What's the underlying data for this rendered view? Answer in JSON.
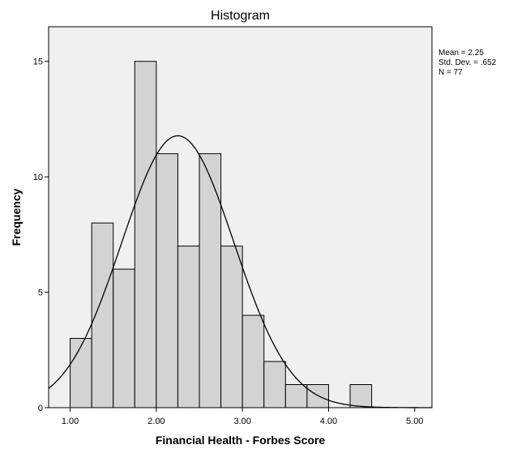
{
  "chart_data": {
    "type": "bar",
    "title": "Histogram",
    "xlabel": "Financial Health - Forbes Score",
    "ylabel": "Frequency",
    "bin_width": 0.25,
    "bins": [
      {
        "start": 1.0,
        "count": 3
      },
      {
        "start": 1.25,
        "count": 8
      },
      {
        "start": 1.5,
        "count": 6
      },
      {
        "start": 1.75,
        "count": 15
      },
      {
        "start": 2.0,
        "count": 11
      },
      {
        "start": 2.25,
        "count": 7
      },
      {
        "start": 2.5,
        "count": 11
      },
      {
        "start": 2.75,
        "count": 7
      },
      {
        "start": 3.0,
        "count": 4
      },
      {
        "start": 3.25,
        "count": 2
      },
      {
        "start": 3.5,
        "count": 1
      },
      {
        "start": 3.75,
        "count": 1
      },
      {
        "start": 4.0,
        "count": 0
      },
      {
        "start": 4.25,
        "count": 1
      }
    ],
    "xlim": [
      0.75,
      5.2
    ],
    "ylim": [
      0,
      16.5
    ],
    "x_ticks": [
      {
        "value": 1,
        "label": "1.00"
      },
      {
        "value": 2,
        "label": "2.00"
      },
      {
        "value": 3,
        "label": "3.00"
      },
      {
        "value": 4,
        "label": "4.00"
      },
      {
        "value": 5,
        "label": "5.00"
      }
    ],
    "y_ticks": [
      {
        "value": 0,
        "label": "0"
      },
      {
        "value": 5,
        "label": "5"
      },
      {
        "value": 10,
        "label": "10"
      },
      {
        "value": 15,
        "label": "15"
      }
    ],
    "normal_curve": {
      "mean": 2.25,
      "sd": 0.652,
      "n": 77
    },
    "stats": [
      "Mean = 2.25",
      "Std. Dev. = .652",
      "N = 77"
    ],
    "grid": false,
    "colors": {
      "plot_background": "#f0f0f0",
      "bar_fill": "#d3d3d3",
      "bar_stroke": "#000000",
      "curve": "#000000"
    }
  }
}
